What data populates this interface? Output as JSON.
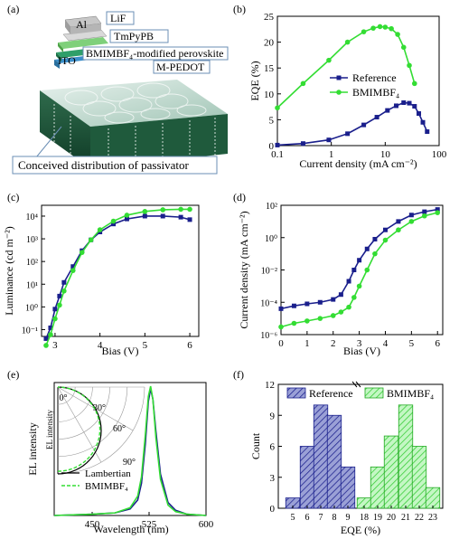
{
  "colors": {
    "reference": "#1a1f8c",
    "bmimbf4": "#33dd33",
    "hist_ref_fill": "#8c92cc",
    "hist_bm_fill": "#b8f5b8"
  },
  "panels": {
    "a": {
      "label": "(a)",
      "layers": [
        "Al",
        "LiF",
        "TmPyPB",
        "BMIMBF₄-modified perovskite",
        "ITO",
        "M-PEDOT"
      ],
      "caption": "Conceived distribution of passivator"
    },
    "b": {
      "label": "(b)"
    },
    "c": {
      "label": "(c)"
    },
    "d": {
      "label": "(d)"
    },
    "e": {
      "label": "(e)",
      "polar_angles": [
        "0°",
        "30°",
        "60°",
        "90°"
      ]
    },
    "f": {
      "label": "(f)"
    }
  },
  "chart_data": [
    {
      "panel": "b",
      "type": "line",
      "xlabel": "Current density (mA cm⁻²)",
      "ylabel": "EQE (%)",
      "xscale": "log",
      "xlim": [
        0.1,
        100
      ],
      "ylim": [
        0,
        25
      ],
      "xticks": [
        "0.1",
        "1",
        "10",
        "100"
      ],
      "yticks": [
        "0",
        "5",
        "10",
        "15",
        "20",
        "25"
      ],
      "legend_position": "center-right",
      "series": [
        {
          "name": "Reference",
          "marker": "square",
          "x": [
            0.1,
            0.3,
            0.9,
            2.0,
            4.0,
            7.0,
            11.0,
            16.0,
            22.0,
            28.0,
            35.0,
            42.0,
            50.0,
            60.0
          ],
          "y": [
            0.1,
            0.4,
            1.1,
            2.3,
            4.0,
            5.5,
            6.8,
            7.7,
            8.3,
            8.2,
            7.6,
            6.2,
            4.5,
            2.7
          ]
        },
        {
          "name": "BMIMBF₄",
          "marker": "circle",
          "x": [
            0.1,
            0.3,
            0.9,
            2.0,
            4.0,
            6.0,
            8.0,
            10.0,
            13.0,
            17.0,
            22.0,
            28.0,
            35.0
          ],
          "y": [
            7.3,
            12.0,
            16.5,
            20.0,
            22.0,
            22.7,
            23.0,
            22.9,
            22.6,
            21.5,
            19.0,
            15.5,
            12.0
          ]
        }
      ]
    },
    {
      "panel": "c",
      "type": "line",
      "xlabel": "Bias (V)",
      "ylabel": "Luminance (cd m⁻²)",
      "yscale": "log",
      "xlim": [
        2.7,
        6.2
      ],
      "ylim": [
        0.05,
        30000
      ],
      "xticks": [
        "3",
        "4",
        "5",
        "6"
      ],
      "yticks": [
        "10⁻¹",
        "10⁰",
        "10¹",
        "10²",
        "10³",
        "10⁴"
      ],
      "series": [
        {
          "name": "Reference",
          "marker": "square",
          "x": [
            2.8,
            2.9,
            3.0,
            3.1,
            3.2,
            3.4,
            3.6,
            3.8,
            4.0,
            4.3,
            4.6,
            5.0,
            5.4,
            5.8,
            6.0
          ],
          "y": [
            0.04,
            0.12,
            0.8,
            3,
            12,
            60,
            300,
            900,
            2000,
            4500,
            7500,
            10000,
            10000,
            9000,
            7000
          ]
        },
        {
          "name": "BMIMBF₄",
          "marker": "circle",
          "x": [
            2.8,
            2.9,
            3.0,
            3.1,
            3.2,
            3.4,
            3.6,
            3.8,
            4.0,
            4.3,
            4.6,
            5.0,
            5.4,
            5.8,
            6.0
          ],
          "y": [
            0.02,
            0.06,
            0.3,
            1.2,
            5,
            40,
            250,
            900,
            2500,
            6000,
            11000,
            16000,
            19000,
            20000,
            20000
          ]
        }
      ]
    },
    {
      "panel": "d",
      "type": "line",
      "xlabel": "Bias (V)",
      "ylabel": "Current density (mA cm⁻²)",
      "yscale": "log",
      "xlim": [
        0,
        6.2
      ],
      "ylim": [
        1e-06,
        100
      ],
      "xticks": [
        "0",
        "1",
        "2",
        "3",
        "4",
        "5",
        "6"
      ],
      "yticks": [
        "10⁻⁶",
        "10⁻⁴",
        "10⁻²",
        "10⁰",
        "10²"
      ],
      "series": [
        {
          "name": "Reference",
          "marker": "square",
          "x": [
            0,
            0.5,
            1.0,
            1.5,
            2.0,
            2.3,
            2.6,
            2.8,
            3.0,
            3.3,
            3.6,
            4.0,
            4.5,
            5.0,
            5.5,
            6.0
          ],
          "y": [
            4e-05,
            6e-05,
            8e-05,
            0.0001,
            0.00015,
            0.0003,
            0.002,
            0.01,
            0.04,
            0.2,
            0.8,
            3,
            10,
            25,
            40,
            55
          ]
        },
        {
          "name": "BMIMBF₄",
          "marker": "circle",
          "x": [
            0,
            0.5,
            1.0,
            1.5,
            2.0,
            2.3,
            2.6,
            2.8,
            3.0,
            3.3,
            3.6,
            4.0,
            4.5,
            5.0,
            5.5,
            6.0
          ],
          "y": [
            3e-06,
            5e-06,
            7e-06,
            1e-05,
            1.5e-05,
            2.5e-05,
            5e-05,
            0.0002,
            0.001,
            0.01,
            0.1,
            0.7,
            3,
            10,
            22,
            35
          ]
        }
      ]
    },
    {
      "panel": "e",
      "type": "line",
      "xlabel": "Wavelength (nm)",
      "ylabel": "EL intensity",
      "xlim": [
        400,
        600
      ],
      "xticks": [
        "450",
        "525",
        "600"
      ],
      "series": [
        {
          "name": "Reference",
          "x": [
            400,
            450,
            480,
            500,
            510,
            515,
            520,
            524,
            527,
            530,
            534,
            540,
            550,
            560,
            575,
            600
          ],
          "y": [
            0,
            0.01,
            0.02,
            0.05,
            0.12,
            0.25,
            0.55,
            0.88,
            0.98,
            0.9,
            0.65,
            0.32,
            0.1,
            0.04,
            0.01,
            0
          ]
        },
        {
          "name": "BMIMBF₄",
          "x": [
            400,
            450,
            480,
            500,
            510,
            515,
            520,
            524,
            527,
            530,
            534,
            540,
            550,
            560,
            575,
            600
          ],
          "y": [
            0,
            0.01,
            0.02,
            0.06,
            0.15,
            0.3,
            0.62,
            0.92,
            1.0,
            0.9,
            0.6,
            0.28,
            0.08,
            0.03,
            0.01,
            0
          ]
        }
      ],
      "inset": {
        "type": "polar",
        "ylabel": "EL intensity",
        "legend": [
          "Lambertian",
          "BMIMBF₄"
        ]
      }
    },
    {
      "panel": "f",
      "type": "bar",
      "xlabel": "EQE (%)",
      "ylabel": "Count",
      "ylim": [
        0,
        12
      ],
      "yticks": [
        "0",
        "3",
        "6",
        "9",
        "12"
      ],
      "xticks": [
        "5",
        "6",
        "7",
        "8",
        "9",
        "18",
        "19",
        "20",
        "21",
        "22",
        "23"
      ],
      "axis_break": true,
      "legend_position": "top",
      "series": [
        {
          "name": "Reference",
          "categories": [
            "5",
            "6",
            "7",
            "8",
            "9"
          ],
          "values": [
            1,
            6,
            10,
            9,
            4
          ]
        },
        {
          "name": "BMIMBF₄",
          "categories": [
            "18",
            "19",
            "20",
            "21",
            "22",
            "23"
          ],
          "values": [
            1,
            4,
            7,
            10,
            6,
            2
          ]
        }
      ]
    }
  ]
}
